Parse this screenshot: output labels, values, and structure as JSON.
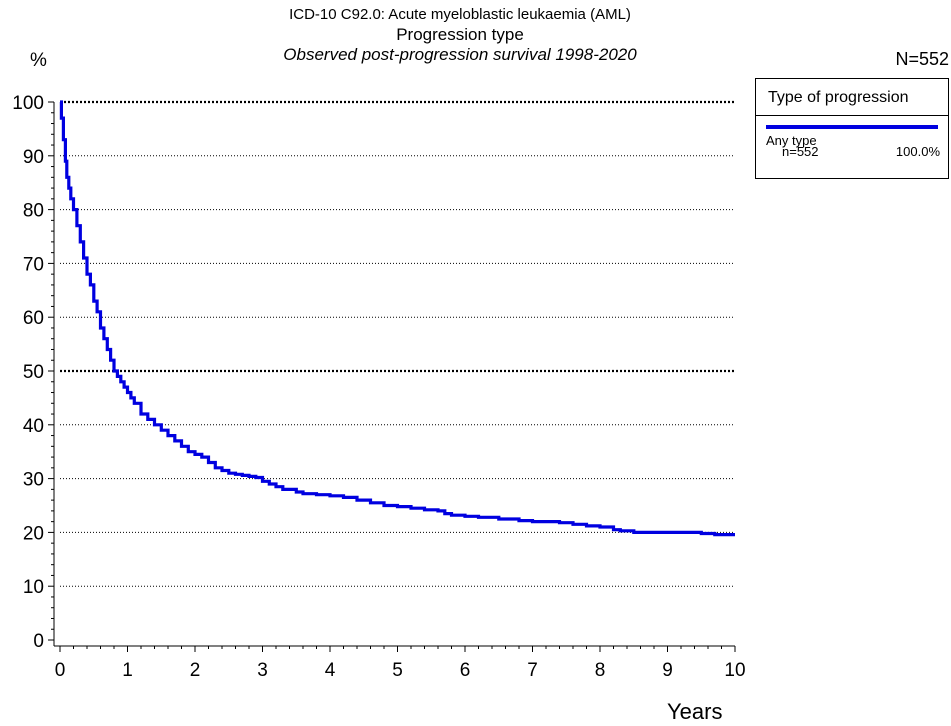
{
  "header": {
    "title": "ICD-10 C92.0: Acute myeloblastic leukaemia (AML)",
    "subtitle": "Progression type",
    "subtitle2": "Observed post-progression survival 1998-2020",
    "n_total": "N=552"
  },
  "legend": {
    "title": "Type of progression",
    "series_label": "Any type",
    "n_label": "n=552",
    "pct_label": "100.0%"
  },
  "colors": {
    "series": "#0000e0",
    "grid": "#000000"
  },
  "chart_data": {
    "type": "line",
    "title": "ICD-10 C92.0: Acute myeloblastic leukaemia (AML)",
    "subtitle": "Progression type",
    "xlabel": "Years",
    "ylabel": "%",
    "xlim": [
      0,
      10
    ],
    "ylim": [
      0,
      100
    ],
    "x_ticks": [
      "0",
      "1",
      "2",
      "3",
      "4",
      "5",
      "6",
      "7",
      "8",
      "9",
      "10"
    ],
    "y_ticks": [
      "0",
      "10",
      "20",
      "30",
      "40",
      "50",
      "60",
      "70",
      "80",
      "90",
      "100"
    ],
    "grid": "horizontal dotted",
    "legend_placement": "top-right",
    "series": [
      {
        "name": "Any type",
        "step": true,
        "x": [
          0,
          0.02,
          0.05,
          0.08,
          0.1,
          0.13,
          0.16,
          0.2,
          0.25,
          0.3,
          0.35,
          0.4,
          0.45,
          0.5,
          0.55,
          0.6,
          0.65,
          0.7,
          0.75,
          0.8,
          0.85,
          0.9,
          0.95,
          1.0,
          1.05,
          1.1,
          1.2,
          1.3,
          1.4,
          1.5,
          1.6,
          1.7,
          1.8,
          1.9,
          2.0,
          2.1,
          2.2,
          2.3,
          2.4,
          2.5,
          2.6,
          2.7,
          2.8,
          2.9,
          3.0,
          3.1,
          3.2,
          3.3,
          3.5,
          3.6,
          3.8,
          4.0,
          4.2,
          4.4,
          4.6,
          4.8,
          5.0,
          5.2,
          5.4,
          5.6,
          5.7,
          5.8,
          6.0,
          6.2,
          6.5,
          6.8,
          7.0,
          7.2,
          7.4,
          7.6,
          7.8,
          8.0,
          8.2,
          8.3,
          8.5,
          9.0,
          9.5,
          9.7,
          10.0
        ],
        "y": [
          100,
          97,
          93,
          89,
          86,
          84,
          82,
          80,
          77,
          74,
          71,
          68,
          66,
          63,
          61,
          58,
          56,
          54,
          52,
          50,
          49,
          48,
          47,
          46,
          45,
          44,
          42,
          41,
          40,
          39,
          38,
          37,
          36,
          35,
          34.5,
          34,
          33,
          32,
          31.5,
          31,
          30.8,
          30.6,
          30.4,
          30.2,
          29.5,
          29,
          28.5,
          28,
          27.5,
          27.2,
          27,
          26.8,
          26.5,
          26,
          25.5,
          25,
          24.8,
          24.5,
          24.2,
          24,
          23.5,
          23.2,
          23,
          22.8,
          22.5,
          22.2,
          22,
          22,
          21.8,
          21.5,
          21.2,
          21,
          20.5,
          20.3,
          20,
          20,
          19.8,
          19.6,
          19.6
        ]
      }
    ]
  }
}
